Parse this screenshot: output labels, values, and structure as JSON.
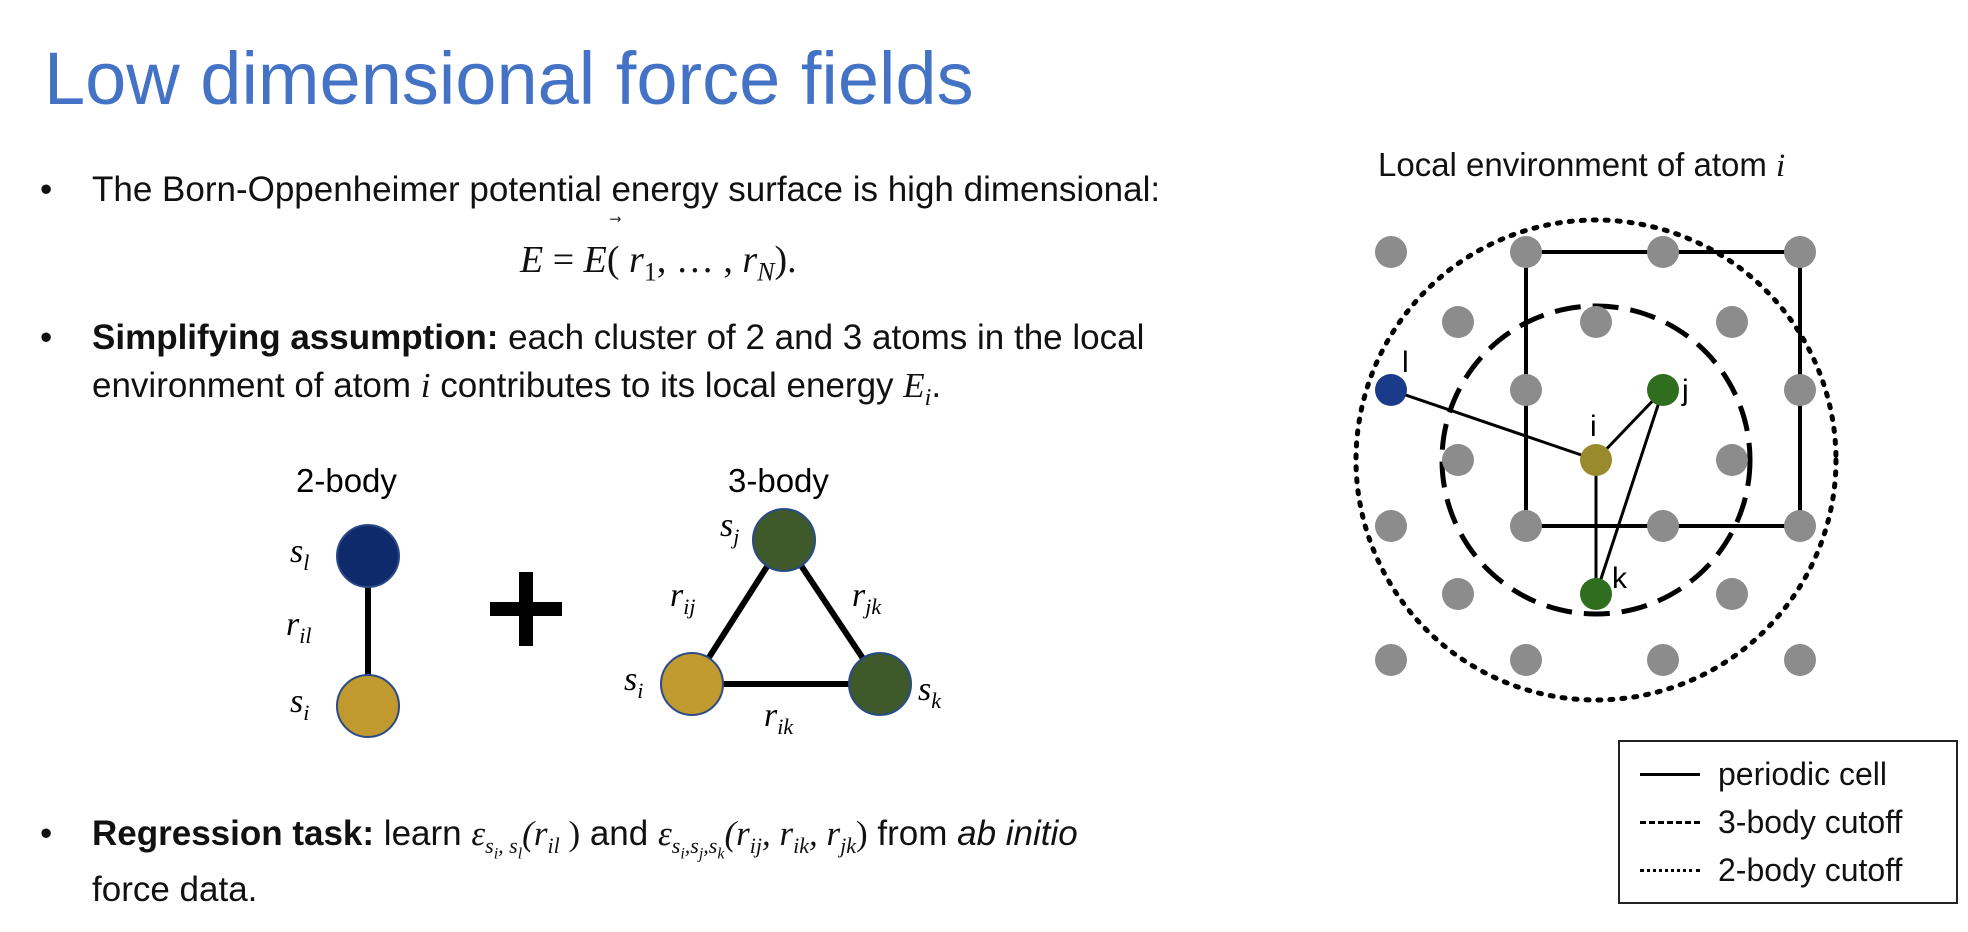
{
  "slide": {
    "title": "Low dimensional force fields",
    "bullet_char": "•",
    "bullets": [
      {
        "text": "The Born-Oppenheimer potential energy surface is high dimensional:"
      },
      {
        "bold": "Simplifying assumption:",
        "text_a": " each cluster of 2 and 3 atoms in the local",
        "text_b": "environment of atom ",
        "var_i": "i",
        "text_c": " contributes to its local energy ",
        "var_E": "E",
        "sub_E": "i",
        "end": "."
      },
      {
        "bold": "Regression task:",
        "text_a": " learn ",
        "eps1": "ε",
        "eps1_sub": "s",
        "eps1_sub_i": "i",
        "eps1_sub_l": "l",
        "arg1": "(r",
        "arg1_sub": "il",
        "arg1_end": " )",
        "and": " and ",
        "eps2": "ε",
        "arg2": "(r",
        "arg2_sub1": "ij",
        "arg2_sub2": "ik",
        "arg2_sub3": "jk",
        "from": " from ",
        "italic": "ab initio",
        "text_b": "force data."
      }
    ],
    "equation": {
      "lhs": "E",
      "eq": " = ",
      "rhs": "E",
      "open": "(",
      "r1": "r",
      "r1_sub": "1",
      "dots": ", … , ",
      "rN": "r",
      "rN_sub": "N",
      "close": ")."
    }
  },
  "two_body": {
    "label": "2-body",
    "s_l": "s",
    "s_l_sub": "l",
    "r_il": "r",
    "r_il_sub": "il",
    "s_i": "s",
    "s_i_sub": "i",
    "plus": "+"
  },
  "three_body": {
    "label": "3-body",
    "s_j": "s",
    "s_j_sub": "j",
    "r_ij": "r",
    "r_ij_sub": "ij",
    "r_jk": "r",
    "r_jk_sub": "jk",
    "s_i": "s",
    "s_i_sub": "i",
    "s_k": "s",
    "s_k_sub": "k",
    "r_ik": "r",
    "r_ik_sub": "ik"
  },
  "local_env": {
    "title_prefix": "Local environment of atom ",
    "title_var": "i",
    "atom_labels": {
      "l": "l",
      "i": "i",
      "j": "j",
      "k": "k"
    }
  },
  "legend": {
    "items": [
      {
        "label": "periodic cell"
      },
      {
        "label": "3-body cutoff"
      },
      {
        "label": "2-body cutoff"
      }
    ]
  },
  "colors": {
    "title": "#4472c4",
    "atom_l": "#0f2a6b",
    "atom_i": "#c09a2e",
    "atom_jk": "#3f5a2a",
    "atom_grey": "#8c8c8c",
    "env_i": "#9a8a2e",
    "env_green": "#2e6e1e",
    "env_l": "#1a3a8a"
  }
}
